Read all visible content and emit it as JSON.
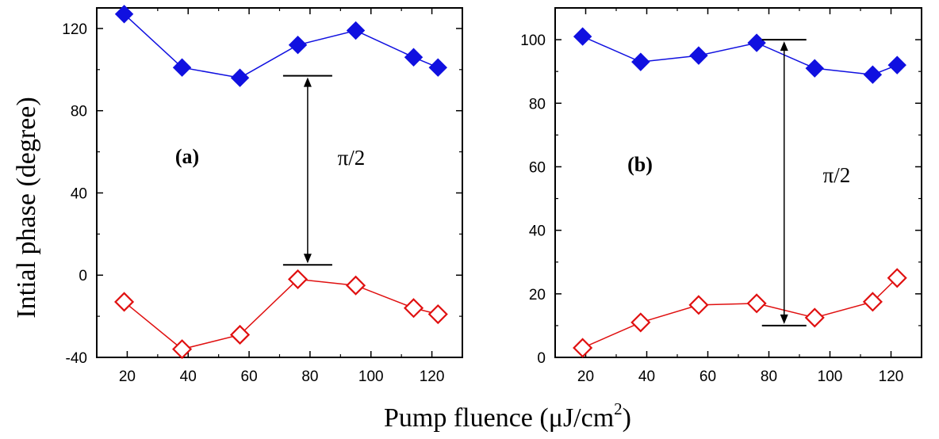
{
  "figure": {
    "ylabel": "Intial phase (degree)",
    "xlabel_main": "Pump fluence (μJ/cm",
    "xlabel_sup": "2",
    "xlabel_close": ")"
  },
  "chart_data": [
    {
      "type": "line",
      "panel_label": "(a)",
      "annotation": "π/2",
      "xlim": [
        10,
        130
      ],
      "ylim": [
        -40,
        130
      ],
      "x_ticks": [
        20,
        40,
        60,
        80,
        100,
        120
      ],
      "y_ticks": [
        -40,
        0,
        40,
        80,
        120
      ],
      "x": [
        19,
        38,
        57,
        76,
        95,
        114,
        122
      ],
      "series": [
        {
          "color": "#1010e0",
          "marker": "filled-diamond",
          "values": [
            127,
            101,
            96,
            112,
            119,
            106,
            101
          ]
        },
        {
          "color": "#e01010",
          "marker": "open-diamond",
          "values": [
            -13,
            -36,
            -29,
            -2,
            -5,
            -16,
            -19
          ]
        }
      ],
      "arrow": {
        "x": 80,
        "y_top": 97,
        "y_bottom": 5
      }
    },
    {
      "type": "line",
      "panel_label": "(b)",
      "annotation": "π/2",
      "xlim": [
        10,
        130
      ],
      "ylim": [
        0,
        110
      ],
      "x_ticks": [
        20,
        40,
        60,
        80,
        100,
        120
      ],
      "y_ticks": [
        0,
        20,
        40,
        60,
        80,
        100
      ],
      "x": [
        19,
        38,
        57,
        76,
        95,
        114,
        122
      ],
      "series": [
        {
          "color": "#1010e0",
          "marker": "filled-diamond",
          "values": [
            101,
            93,
            95,
            99,
            91,
            89,
            92
          ]
        },
        {
          "color": "#e01010",
          "marker": "open-diamond",
          "values": [
            3,
            11,
            16.5,
            17,
            12.5,
            17.5,
            25
          ]
        }
      ],
      "arrow": {
        "x": 85,
        "y_top": 100,
        "y_bottom": 10
      }
    }
  ]
}
